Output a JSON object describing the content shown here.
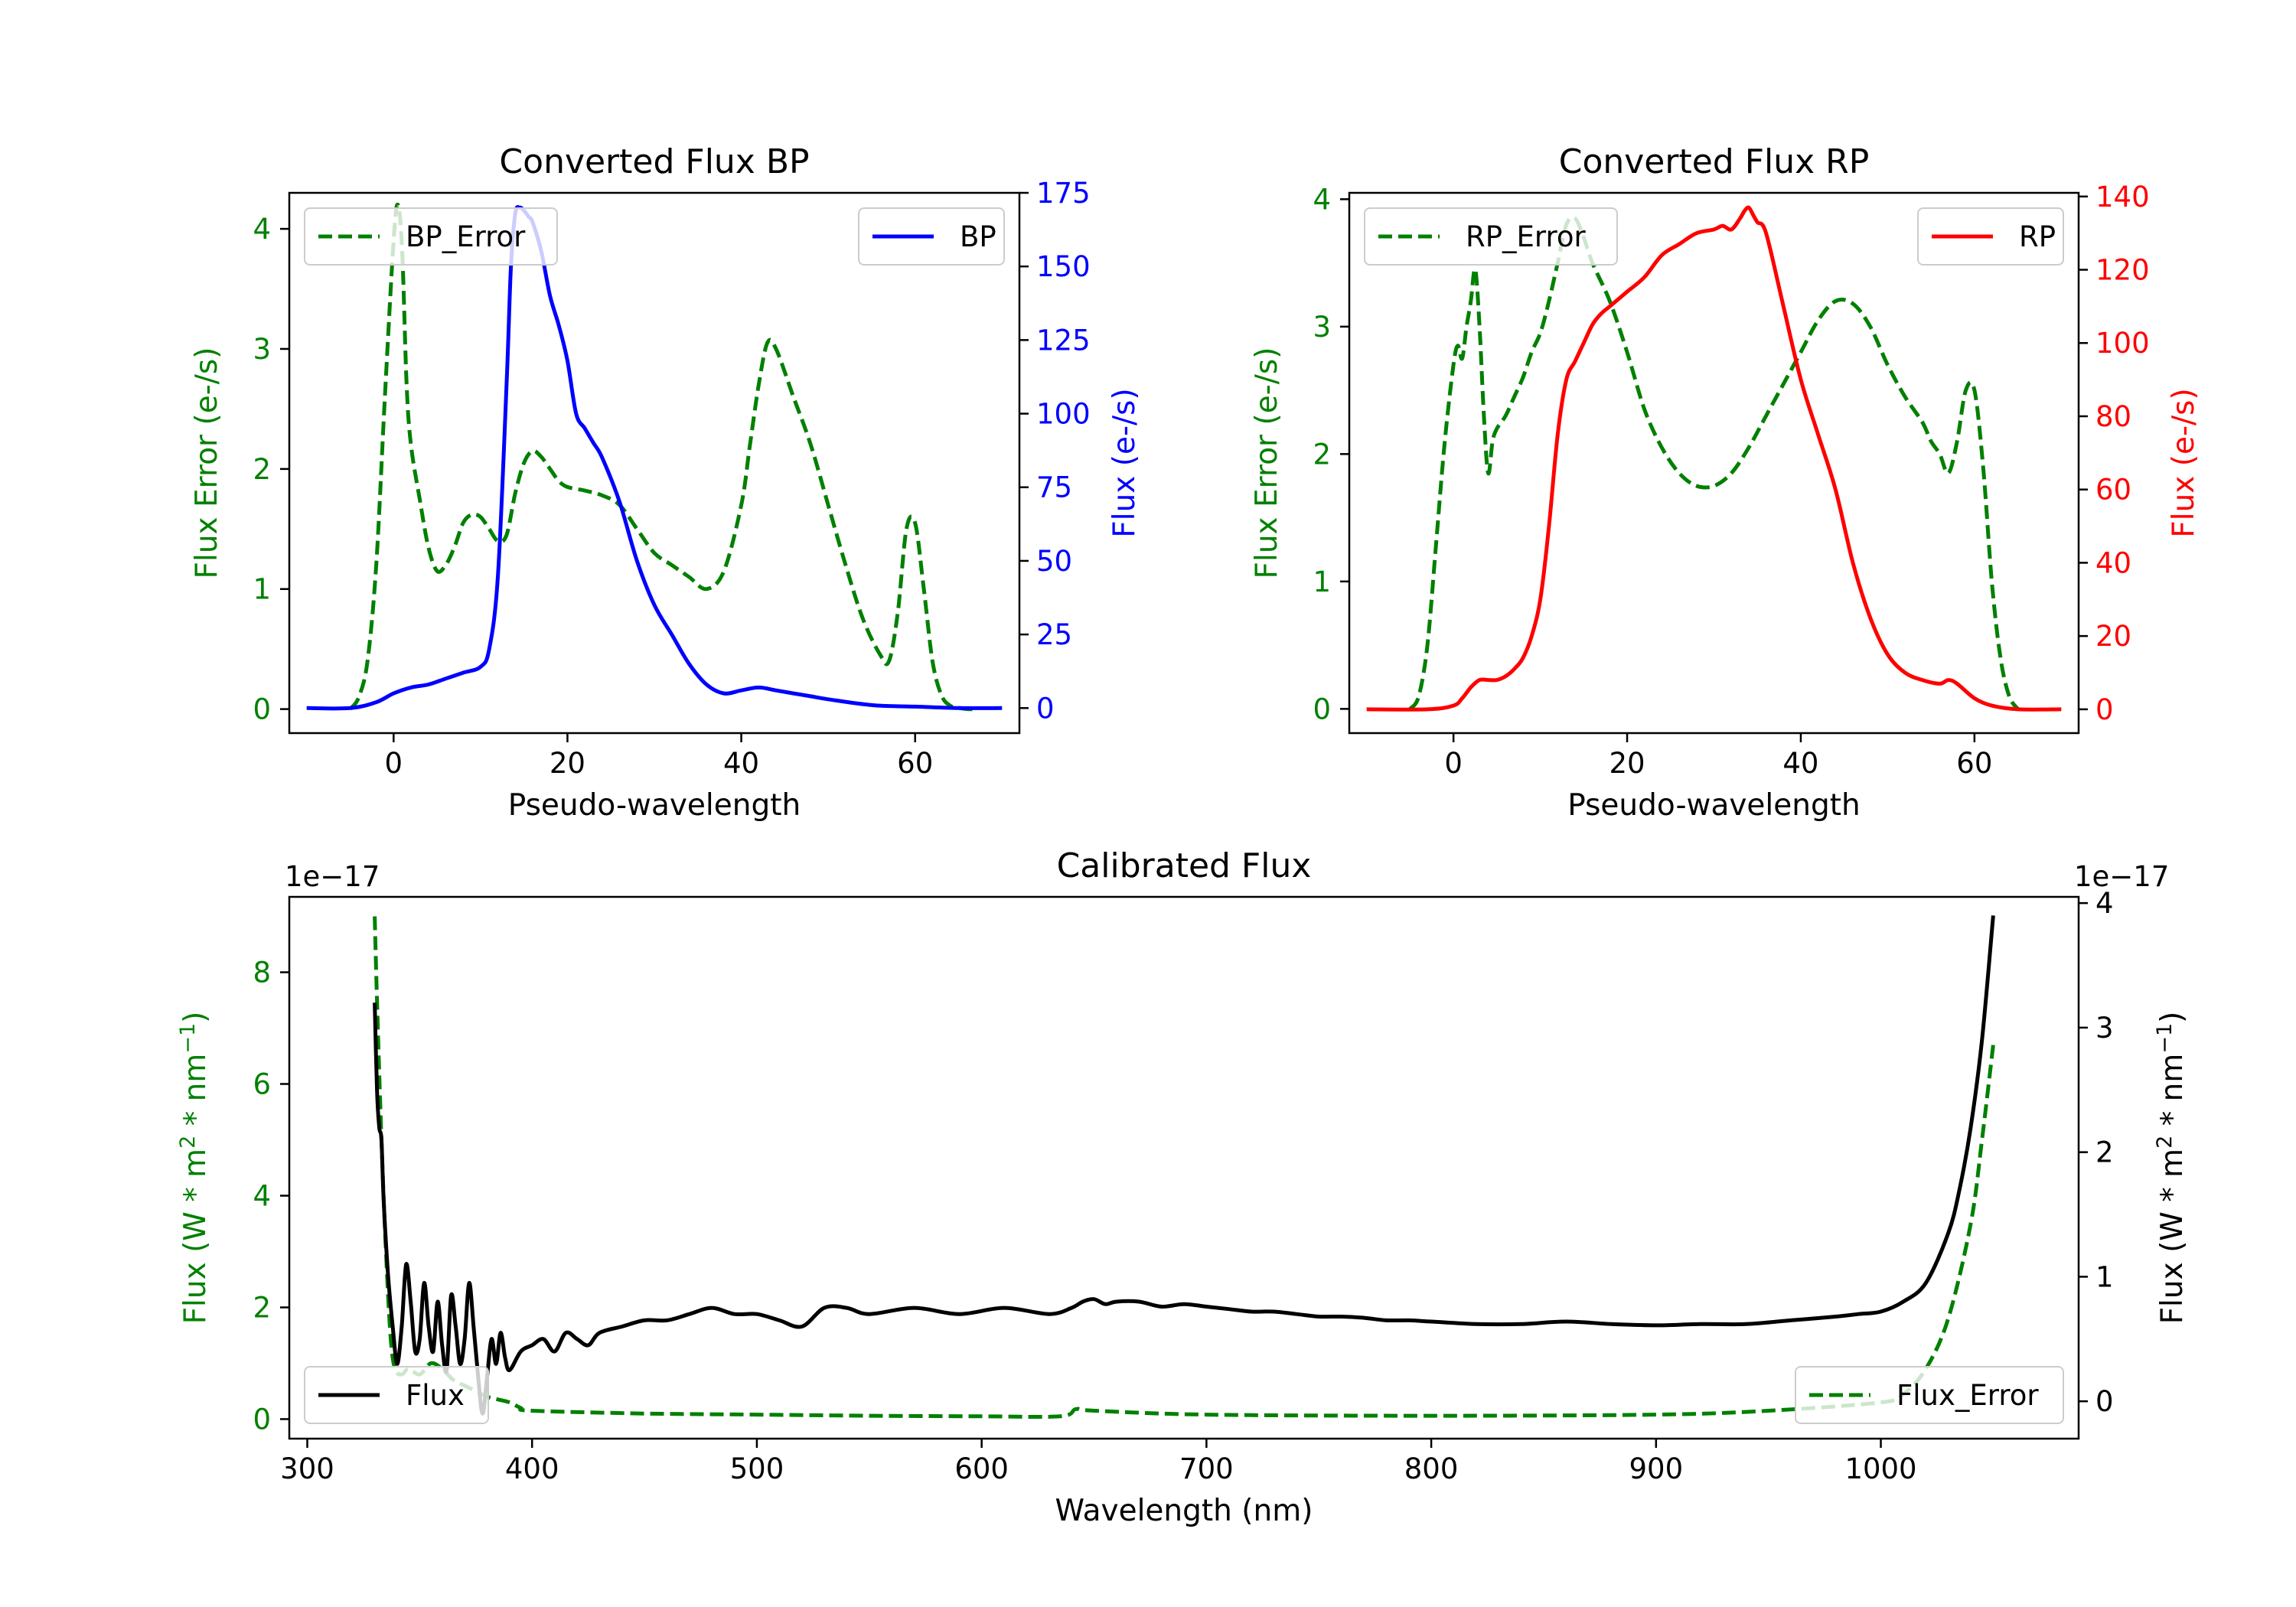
{
  "chart_data": [
    {
      "type": "line",
      "title": "Converted Flux BP",
      "xlabel": "Pseudo-wavelength",
      "ylabel_left": "Flux Error (e-/s)",
      "ylabel_right": "Flux (e-/s)",
      "xlim": [
        -12,
        72
      ],
      "ylim_left": [
        -0.2,
        4.3
      ],
      "ylim_right": [
        -8.5,
        175
      ],
      "xticks": [
        0,
        20,
        40,
        60
      ],
      "xtick_labels": [
        "0",
        "20",
        "40",
        "60"
      ],
      "yticks_left": [
        0,
        1,
        2,
        3,
        4
      ],
      "ytick_labels_left": [
        "0",
        "1",
        "2",
        "3",
        "4"
      ],
      "yticks_right": [
        0,
        25,
        50,
        75,
        100,
        125,
        150,
        175
      ],
      "ytick_labels_right": [
        "0",
        "25",
        "50",
        "75",
        "100",
        "125",
        "150",
        "175"
      ],
      "colors": {
        "error": "#008000",
        "flux": "#0000ff",
        "left_axis": "#008000",
        "right_axis": "#0000ff"
      },
      "legend": [
        {
          "label": "BP_Error",
          "style": "dashed",
          "color": "#008000",
          "placement": "upper left"
        },
        {
          "label": "BP",
          "style": "solid",
          "color": "#0000ff",
          "placement": "upper right"
        }
      ],
      "series": [
        {
          "name": "BP_Error",
          "axis": "left",
          "style": "dashed",
          "x": [
            -5,
            -4,
            -3,
            -2,
            -1,
            0,
            0.5,
            1,
            1.5,
            2,
            3,
            4,
            5,
            6,
            7,
            8,
            9,
            10,
            11,
            12,
            13,
            14,
            15,
            16,
            17,
            18,
            19,
            20,
            22,
            24,
            26,
            28,
            30,
            32,
            34,
            36,
            38,
            40,
            41,
            42,
            43,
            44,
            46,
            48,
            50,
            52,
            54,
            56,
            57,
            58,
            59,
            60,
            61,
            62,
            63,
            64,
            65,
            66,
            67
          ],
          "values": [
            0.0,
            0.1,
            0.4,
            1.2,
            2.6,
            3.9,
            4.2,
            3.8,
            2.7,
            2.2,
            1.75,
            1.35,
            1.15,
            1.2,
            1.35,
            1.55,
            1.62,
            1.6,
            1.5,
            1.4,
            1.45,
            1.8,
            2.05,
            2.15,
            2.1,
            2.0,
            1.9,
            1.85,
            1.82,
            1.78,
            1.7,
            1.5,
            1.3,
            1.2,
            1.1,
            1.0,
            1.15,
            1.7,
            2.2,
            2.7,
            3.05,
            3.0,
            2.6,
            2.2,
            1.7,
            1.2,
            0.75,
            0.45,
            0.4,
            0.8,
            1.5,
            1.55,
            1.0,
            0.4,
            0.12,
            0.03,
            0.01,
            0.0,
            0.0
          ]
        },
        {
          "name": "BP",
          "axis": "right",
          "style": "solid",
          "x": [
            -10,
            -5,
            -2,
            0,
            2,
            4,
            6,
            8,
            10,
            11,
            12,
            13,
            13.5,
            14,
            14.5,
            15,
            15.5,
            16,
            17,
            18,
            19,
            20,
            21,
            22,
            23,
            24,
            26,
            28,
            30,
            32,
            34,
            36,
            38,
            40,
            42,
            44,
            46,
            48,
            50,
            55,
            60,
            65,
            70
          ],
          "values": [
            0,
            0,
            2,
            5,
            7,
            8,
            10,
            12,
            14,
            20,
            45,
            110,
            150,
            168,
            170,
            169,
            167,
            165,
            155,
            140,
            130,
            118,
            100,
            95,
            90,
            85,
            70,
            50,
            35,
            25,
            15,
            8,
            5,
            6,
            7,
            6,
            5,
            4,
            3,
            1,
            0.5,
            0,
            0
          ]
        }
      ]
    },
    {
      "type": "line",
      "title": "Converted Flux RP",
      "xlabel": "Pseudo-wavelength",
      "ylabel_left": "Flux Error (e-/s)",
      "ylabel_right": "Flux (e-/s)",
      "xlim": [
        -12,
        72
      ],
      "ylim_left": [
        -0.19,
        4.05
      ],
      "ylim_right": [
        -6.5,
        141
      ],
      "xticks": [
        0,
        20,
        40,
        60
      ],
      "xtick_labels": [
        "0",
        "20",
        "40",
        "60"
      ],
      "yticks_left": [
        0,
        1,
        2,
        3,
        4
      ],
      "ytick_labels_left": [
        "0",
        "1",
        "2",
        "3",
        "4"
      ],
      "yticks_right": [
        0,
        20,
        40,
        60,
        80,
        100,
        120,
        140
      ],
      "ytick_labels_right": [
        "0",
        "20",
        "40",
        "60",
        "80",
        "100",
        "120",
        "140"
      ],
      "colors": {
        "error": "#008000",
        "flux": "#ff0000",
        "left_axis": "#008000",
        "right_axis": "#ff0000"
      },
      "legend": [
        {
          "label": "RP_Error",
          "style": "dashed",
          "color": "#008000",
          "placement": "upper left"
        },
        {
          "label": "RP",
          "style": "solid",
          "color": "#ff0000",
          "placement": "upper right"
        }
      ],
      "series": [
        {
          "name": "RP_Error",
          "axis": "left",
          "style": "dashed",
          "x": [
            -5,
            -4,
            -3,
            -2,
            -1,
            0,
            0.5,
            1,
            1.5,
            2,
            2.5,
            3,
            3.5,
            4,
            4.5,
            5,
            6,
            7,
            8,
            9,
            10,
            11,
            12,
            13,
            14,
            15,
            16,
            18,
            20,
            22,
            24,
            26,
            28,
            30,
            32,
            34,
            36,
            38,
            40,
            42,
            44,
            46,
            48,
            50,
            52,
            54,
            55,
            56,
            57,
            58,
            59,
            60,
            61,
            62,
            63,
            64,
            65
          ],
          "values": [
            0.0,
            0.1,
            0.5,
            1.3,
            2.1,
            2.7,
            2.85,
            2.75,
            3.0,
            3.2,
            3.45,
            3.0,
            2.3,
            1.85,
            2.1,
            2.2,
            2.3,
            2.45,
            2.6,
            2.8,
            2.95,
            3.2,
            3.5,
            3.8,
            3.85,
            3.7,
            3.5,
            3.2,
            2.8,
            2.35,
            2.05,
            1.85,
            1.75,
            1.75,
            1.85,
            2.05,
            2.3,
            2.55,
            2.8,
            3.05,
            3.2,
            3.18,
            3.0,
            2.7,
            2.45,
            2.25,
            2.1,
            2.0,
            1.85,
            2.1,
            2.5,
            2.5,
            1.9,
            1.0,
            0.4,
            0.1,
            0.0
          ]
        },
        {
          "name": "RP",
          "axis": "right",
          "style": "solid",
          "x": [
            -10,
            -3,
            0,
            1,
            2,
            3,
            4,
            5,
            6,
            7,
            8,
            9,
            10,
            11,
            12,
            13,
            14,
            15,
            16,
            17,
            18,
            19,
            20,
            22,
            24,
            26,
            28,
            30,
            31,
            32,
            33,
            33.5,
            34,
            34.5,
            35,
            36,
            38,
            40,
            42,
            44,
            46,
            48,
            50,
            52,
            54,
            56,
            57,
            58,
            60,
            62,
            65,
            70
          ],
          "values": [
            0,
            0,
            1,
            3,
            6,
            8,
            8,
            8,
            9,
            11,
            14,
            20,
            30,
            50,
            75,
            90,
            95,
            100,
            105,
            108,
            110,
            112,
            114,
            118,
            124,
            127,
            130,
            131,
            132,
            131,
            134,
            136,
            137,
            135,
            133,
            130,
            110,
            90,
            75,
            60,
            40,
            25,
            15,
            10,
            8,
            7,
            8,
            7,
            3,
            1,
            0,
            0
          ]
        }
      ]
    },
    {
      "type": "line",
      "title": "Calibrated Flux",
      "xlabel": "Wavelength (nm)",
      "ylabel_left": "Flux (W * m$^2$ * nm$^{-1}$)",
      "ylabel_left_parts": [
        "Flux (W * m",
        "2",
        " * nm",
        "−1",
        ")"
      ],
      "ylabel_right_parts": [
        "Flux (W * m",
        "2",
        " * nm",
        "−1",
        ")"
      ],
      "offset_left": "1e−17",
      "offset_right": "1e−17",
      "xlim": [
        292,
        1088
      ],
      "ylim_left": [
        -0.35,
        9.35
      ],
      "ylim_right": [
        -0.3,
        4.05
      ],
      "xticks": [
        300,
        400,
        500,
        600,
        700,
        800,
        900,
        1000
      ],
      "xtick_labels": [
        "300",
        "400",
        "500",
        "600",
        "700",
        "800",
        "900",
        "1000"
      ],
      "yticks_left": [
        0,
        2,
        4,
        6,
        8
      ],
      "ytick_labels_left": [
        "0",
        "2",
        "4",
        "6",
        "8"
      ],
      "yticks_right": [
        0,
        1,
        2,
        3,
        4
      ],
      "ytick_labels_right": [
        "0",
        "1",
        "2",
        "3",
        "4"
      ],
      "colors": {
        "error": "#008000",
        "flux": "#000000",
        "left_axis": "#008000",
        "right_axis": "#000000"
      },
      "legend": [
        {
          "label": "Flux",
          "style": "solid",
          "color": "#000000",
          "placement": "lower left"
        },
        {
          "label": "Flux_Error",
          "style": "dashed",
          "color": "#008000",
          "placement": "lower right"
        }
      ],
      "series": [
        {
          "name": "Flux_Error",
          "axis": "left",
          "style": "dashed",
          "x": [
            330,
            331,
            333,
            335,
            337,
            339,
            342,
            345,
            350,
            355,
            360,
            365,
            370,
            375,
            380,
            385,
            390,
            395,
            400,
            450,
            500,
            550,
            600,
            635,
            642,
            650,
            700,
            800,
            900,
            950,
            1000,
            1010,
            1020,
            1030,
            1040,
            1045,
            1050
          ],
          "values": [
            9.0,
            7.5,
            5.0,
            3.0,
            1.5,
            0.9,
            0.8,
            0.9,
            0.8,
            1.0,
            0.9,
            0.7,
            0.6,
            0.5,
            0.4,
            0.35,
            0.3,
            0.2,
            0.15,
            0.1,
            0.08,
            0.06,
            0.05,
            0.05,
            0.18,
            0.15,
            0.08,
            0.06,
            0.08,
            0.15,
            0.3,
            0.45,
            0.9,
            1.8,
            3.5,
            5.0,
            6.7
          ]
        },
        {
          "name": "Flux",
          "axis": "right",
          "style": "solid",
          "x": [
            330,
            331,
            332,
            333,
            334,
            336,
            338,
            340,
            342,
            344,
            346,
            348,
            350,
            352,
            354,
            356,
            358,
            360,
            362,
            364,
            366,
            368,
            370,
            372,
            374,
            376,
            378,
            380,
            382,
            384,
            386,
            388,
            390,
            395,
            400,
            405,
            410,
            415,
            420,
            425,
            430,
            440,
            450,
            460,
            470,
            480,
            490,
            500,
            510,
            520,
            530,
            540,
            550,
            570,
            590,
            610,
            630,
            640,
            645,
            650,
            655,
            660,
            670,
            680,
            690,
            700,
            710,
            720,
            730,
            740,
            750,
            760,
            770,
            780,
            790,
            800,
            820,
            840,
            860,
            880,
            900,
            920,
            940,
            960,
            980,
            990,
            1000,
            1010,
            1020,
            1030,
            1035,
            1040,
            1045,
            1050
          ],
          "values": [
            3.2,
            2.5,
            2.2,
            2.1,
            1.6,
            1.0,
            0.6,
            0.3,
            0.6,
            1.1,
            0.8,
            0.4,
            0.5,
            0.95,
            0.6,
            0.4,
            0.8,
            0.45,
            0.25,
            0.85,
            0.6,
            0.3,
            0.5,
            0.95,
            0.6,
            0.2,
            -0.1,
            0.2,
            0.5,
            0.3,
            0.55,
            0.35,
            0.25,
            0.4,
            0.45,
            0.5,
            0.4,
            0.55,
            0.5,
            0.45,
            0.55,
            0.6,
            0.65,
            0.65,
            0.7,
            0.75,
            0.7,
            0.7,
            0.65,
            0.6,
            0.75,
            0.75,
            0.7,
            0.75,
            0.7,
            0.75,
            0.7,
            0.75,
            0.8,
            0.82,
            0.78,
            0.8,
            0.8,
            0.76,
            0.78,
            0.76,
            0.74,
            0.72,
            0.72,
            0.7,
            0.68,
            0.68,
            0.67,
            0.65,
            0.65,
            0.64,
            0.62,
            0.62,
            0.64,
            0.62,
            0.61,
            0.62,
            0.62,
            0.65,
            0.68,
            0.7,
            0.72,
            0.8,
            0.95,
            1.35,
            1.7,
            2.2,
            2.9,
            3.9
          ]
        }
      ]
    }
  ]
}
